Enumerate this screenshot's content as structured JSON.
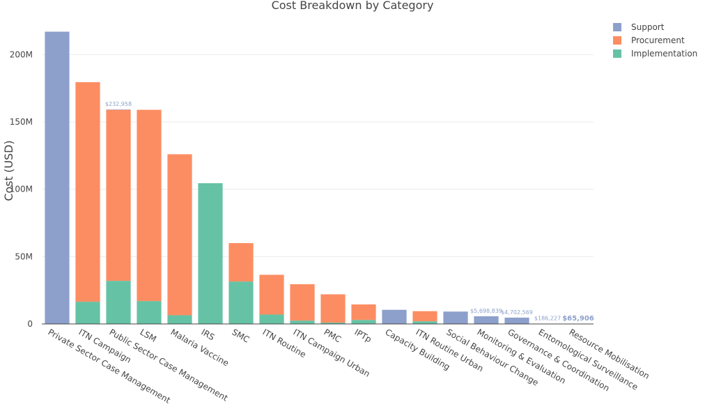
{
  "chart_data": {
    "type": "bar",
    "stacked": true,
    "title": "Cost Breakdown by Category",
    "xlabel": "",
    "ylabel": "Cost (USD)",
    "ylim": [
      0,
      225000000
    ],
    "yticks": [
      0,
      50000000,
      100000000,
      150000000,
      200000000
    ],
    "ytick_labels": [
      "0",
      "50M",
      "100M",
      "150M",
      "200M"
    ],
    "grid": true,
    "legend_position": "top-right",
    "categories": [
      "Private Sector Case Management",
      "ITN Campaign",
      "Public Sector Case Management",
      "LSM",
      "Malaria Vaccine",
      "IRS",
      "SMC",
      "ITN Routine",
      "ITN Campaign Urban",
      "PMC",
      "IPTp",
      "Capacity Building",
      "ITN Routine Urban",
      "Social Behaviour Change",
      "Monitoring & Evaluation",
      "Governance & Coordination",
      "Entomological Surveillance",
      "Resource Mobilisation"
    ],
    "series": [
      {
        "name": "Implementation",
        "color": "#66c2a5",
        "values": [
          0,
          16500000,
          32000000,
          17000000,
          6500000,
          104500000,
          31500000,
          7000000,
          2500000,
          1000000,
          3000000,
          0,
          2000000,
          0,
          0,
          0,
          0,
          0
        ]
      },
      {
        "name": "Procurement",
        "color": "#fc8d62",
        "values": [
          0,
          163000000,
          127000000,
          142000000,
          119500000,
          0,
          28500000,
          29500000,
          27000000,
          21000000,
          11500000,
          0,
          7500000,
          0,
          0,
          0,
          0,
          0
        ]
      },
      {
        "name": "Support",
        "color": "#8da0cb",
        "values": [
          217000000,
          0,
          232958,
          0,
          0,
          0,
          0,
          0,
          0,
          0,
          0,
          10500000,
          0,
          9200000,
          5698839,
          4702569,
          186227,
          65906
        ]
      }
    ],
    "legend_entries": [
      {
        "name": "Support",
        "color": "#8da0cb"
      },
      {
        "name": "Procurement",
        "color": "#fc8d62"
      },
      {
        "name": "Implementation",
        "color": "#66c2a5"
      }
    ],
    "annotations": [
      {
        "category": "Public Sector Case Management",
        "text": "$232,958"
      },
      {
        "category": "Monitoring & Evaluation",
        "text": "$5,698,839"
      },
      {
        "category": "Governance & Coordination",
        "text": "$4,702,569"
      },
      {
        "category": "Entomological Surveillance",
        "text": "$186,227"
      },
      {
        "category": "Resource Mobilisation",
        "text": "$65,906"
      }
    ]
  }
}
